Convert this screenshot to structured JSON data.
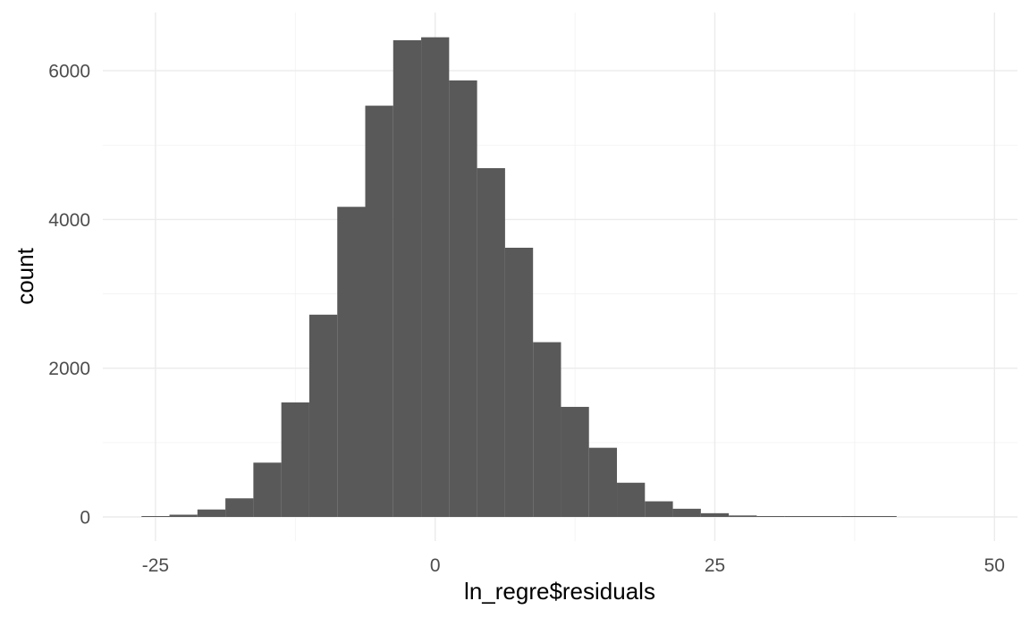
{
  "chart_data": {
    "type": "bar",
    "subtype": "histogram",
    "xlabel": "ln_regre$residuals",
    "ylabel": "count",
    "xlim": [
      -30,
      52
    ],
    "ylim": [
      0,
      6700
    ],
    "x_ticks": [
      -25,
      0,
      25,
      50
    ],
    "x_tick_labels": [
      "-25",
      "0",
      "25",
      "50"
    ],
    "y_ticks": [
      0,
      2000,
      4000,
      6000
    ],
    "y_tick_labels": [
      "0",
      "2000",
      "4000",
      "6000"
    ],
    "grid": true,
    "bar_color": "#595959",
    "bins": [
      {
        "x0": -26.25,
        "x1": -23.75,
        "count": 10
      },
      {
        "x0": -23.75,
        "x1": -21.25,
        "count": 30
      },
      {
        "x0": -21.25,
        "x1": -18.75,
        "count": 100
      },
      {
        "x0": -18.75,
        "x1": -16.25,
        "count": 250
      },
      {
        "x0": -16.25,
        "x1": -13.75,
        "count": 730
      },
      {
        "x0": -13.75,
        "x1": -11.25,
        "count": 1540
      },
      {
        "x0": -11.25,
        "x1": -8.75,
        "count": 2720
      },
      {
        "x0": -8.75,
        "x1": -6.25,
        "count": 4170
      },
      {
        "x0": -6.25,
        "x1": -3.75,
        "count": 5530
      },
      {
        "x0": -3.75,
        "x1": -1.25,
        "count": 6410
      },
      {
        "x0": -1.25,
        "x1": 1.25,
        "count": 6450
      },
      {
        "x0": 1.25,
        "x1": 3.75,
        "count": 5870
      },
      {
        "x0": 3.75,
        "x1": 6.25,
        "count": 4690
      },
      {
        "x0": 6.25,
        "x1": 8.75,
        "count": 3620
      },
      {
        "x0": 8.75,
        "x1": 11.25,
        "count": 2350
      },
      {
        "x0": 11.25,
        "x1": 13.75,
        "count": 1480
      },
      {
        "x0": 13.75,
        "x1": 16.25,
        "count": 930
      },
      {
        "x0": 16.25,
        "x1": 18.75,
        "count": 460
      },
      {
        "x0": 18.75,
        "x1": 21.25,
        "count": 210
      },
      {
        "x0": 21.25,
        "x1": 23.75,
        "count": 110
      },
      {
        "x0": 23.75,
        "x1": 26.25,
        "count": 50
      },
      {
        "x0": 26.25,
        "x1": 28.75,
        "count": 20
      },
      {
        "x0": 28.75,
        "x1": 31.25,
        "count": 8
      },
      {
        "x0": 31.25,
        "x1": 33.75,
        "count": 5
      },
      {
        "x0": 33.75,
        "x1": 36.25,
        "count": 3
      },
      {
        "x0": 36.25,
        "x1": 38.75,
        "count": 2
      },
      {
        "x0": 38.75,
        "x1": 41.25,
        "count": 1
      }
    ]
  }
}
